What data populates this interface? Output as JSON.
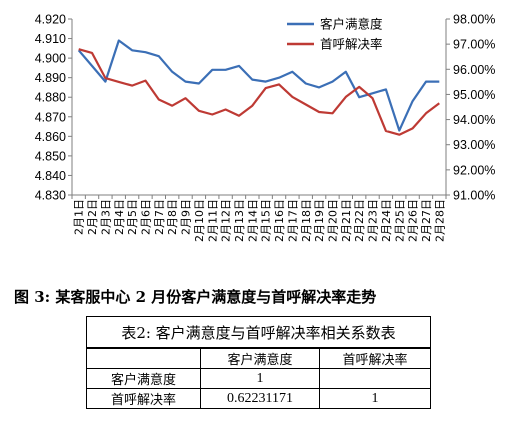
{
  "chart_data": {
    "type": "line",
    "categories": [
      "2月1日",
      "2月2日",
      "2月3日",
      "2月4日",
      "2月5日",
      "2月6日",
      "2月7日",
      "2月8日",
      "2月9日",
      "2月10日",
      "2月11日",
      "2月12日",
      "2月13日",
      "2月14日",
      "2月15日",
      "2月16日",
      "2月17日",
      "2月18日",
      "2月19日",
      "2月20日",
      "2月21日",
      "2月22日",
      "2月23日",
      "2月24日",
      "2月25日",
      "2月26日",
      "2月27日",
      "2月28日"
    ],
    "series": [
      {
        "name": "客户满意度",
        "axis": "left",
        "color": "#3b6fb6",
        "values": [
          4.904,
          4.896,
          4.888,
          4.909,
          4.904,
          4.903,
          4.901,
          4.893,
          4.888,
          4.887,
          4.894,
          4.894,
          4.896,
          4.889,
          4.888,
          4.89,
          4.893,
          4.887,
          4.885,
          4.888,
          4.893,
          4.88,
          4.882,
          4.884,
          4.863,
          4.878,
          4.888,
          4.888
        ]
      },
      {
        "name": "首呼解决率",
        "axis": "right",
        "color": "#be3a34",
        "values": [
          96.8,
          96.65,
          95.65,
          95.5,
          95.35,
          95.55,
          94.8,
          94.55,
          94.85,
          94.35,
          94.2,
          94.4,
          94.15,
          94.55,
          95.25,
          95.4,
          94.9,
          94.6,
          94.3,
          94.25,
          94.9,
          95.3,
          94.85,
          93.55,
          93.4,
          93.65,
          94.25,
          94.65
        ]
      }
    ],
    "y_left": {
      "ylim": [
        4.83,
        4.92
      ],
      "ticks": [
        "4.830",
        "4.840",
        "4.850",
        "4.860",
        "4.870",
        "4.880",
        "4.890",
        "4.900",
        "4.910",
        "4.920"
      ]
    },
    "y_right": {
      "ylim": [
        91.0,
        98.0
      ],
      "ticks": [
        "91.00%",
        "92.00%",
        "93.00%",
        "94.00%",
        "95.00%",
        "96.00%",
        "97.00%",
        "98.00%"
      ]
    },
    "legend_position": "top-right",
    "grid": false
  },
  "caption": "图 3: 某客服中心 2 月份客户满意度与首呼解决率走势",
  "table": {
    "title": "表2: 客户满意度与首呼解决率相关系数表",
    "header": [
      "",
      "客户满意度",
      "首呼解决率"
    ],
    "rows": [
      [
        "客户满意度",
        "1",
        ""
      ],
      [
        "首呼解决率",
        "0.62231171",
        "1"
      ]
    ]
  }
}
